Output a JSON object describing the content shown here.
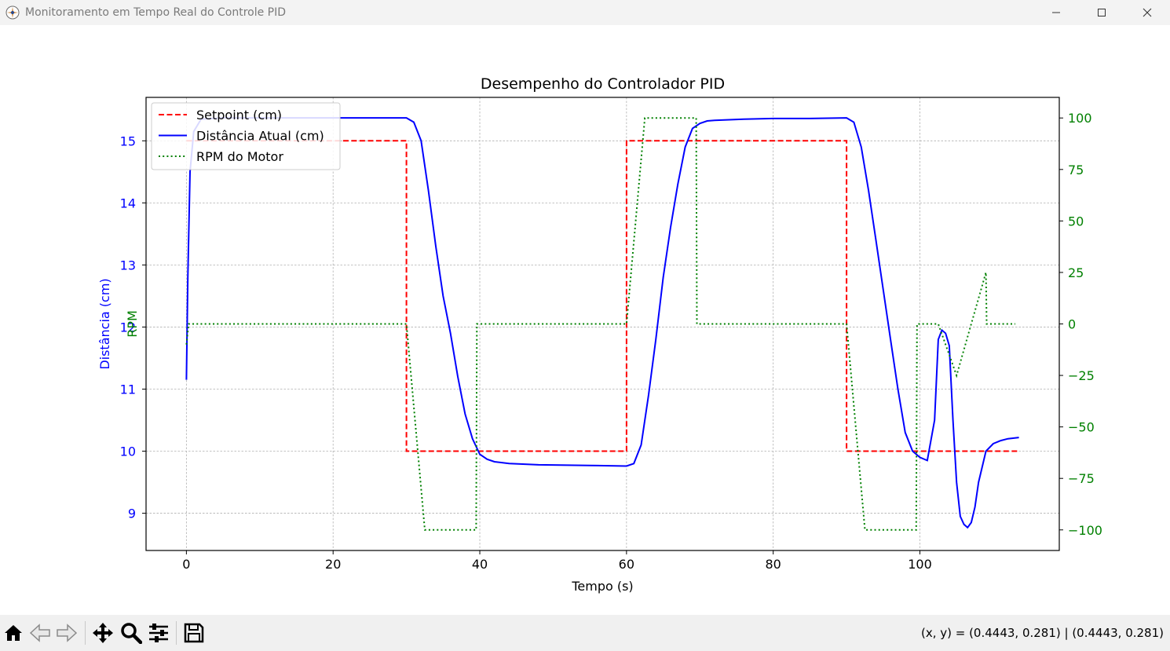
{
  "window": {
    "title": "Monitoramento em Tempo Real do Controle PID",
    "controls": [
      "minimize",
      "maximize",
      "close"
    ]
  },
  "toolbar": {
    "tools": [
      {
        "name": "home-icon",
        "label": "Home"
      },
      {
        "name": "back-arrow-icon",
        "label": "Back"
      },
      {
        "name": "forward-arrow-icon",
        "label": "Forward"
      },
      {
        "name": "pan-icon",
        "label": "Pan"
      },
      {
        "name": "zoom-icon",
        "label": "Zoom"
      },
      {
        "name": "configure-subplots-icon",
        "label": "Configure subplots"
      },
      {
        "name": "save-icon",
        "label": "Save"
      }
    ],
    "coords": "(x, y) = (0.4443, 0.281) | (0.4443, 0.281)"
  },
  "chart_data": {
    "type": "line",
    "title": "Desempenho do Controlador PID",
    "xlabel": "Tempo (s)",
    "ylabel_left": "Distância (cm)",
    "ylabel_right": "RPM",
    "xlim": [
      -5.5,
      119
    ],
    "ylim_left": [
      8.4,
      15.7
    ],
    "ylim_right": [
      -110,
      110
    ],
    "xticks": [
      0,
      20,
      40,
      60,
      80,
      100
    ],
    "yticks_left": [
      9,
      10,
      11,
      12,
      13,
      14,
      15
    ],
    "yticks_right": [
      -100,
      -75,
      -50,
      -25,
      0,
      25,
      50,
      75,
      100
    ],
    "grid": true,
    "legend_position": "upper left",
    "colors": {
      "setpoint": "#ff0000",
      "distance": "#0000ff",
      "rpm": "#008000",
      "left_axis": "#0000ff",
      "right_axis": "#008000"
    },
    "series": [
      {
        "name": "Setpoint (cm)",
        "axis": "left",
        "style": "dashed",
        "color": "#ff0000",
        "x": [
          0,
          30,
          30,
          60,
          60,
          90,
          90,
          113.5
        ],
        "y": [
          15,
          15,
          10,
          10,
          15,
          15,
          10,
          10
        ]
      },
      {
        "name": "Distância Atual (cm)",
        "axis": "left",
        "style": "solid",
        "color": "#0000ff",
        "x": [
          0,
          0.2,
          0.5,
          1,
          2,
          5,
          10,
          20,
          28,
          30,
          31,
          32,
          33,
          34,
          35,
          36,
          37,
          38,
          39,
          40,
          41,
          42,
          44,
          48,
          55,
          60,
          61,
          62,
          63,
          64,
          65,
          66,
          67,
          68,
          69,
          70,
          71,
          72,
          74,
          76,
          80,
          85,
          90,
          91,
          92,
          93,
          94,
          95,
          96,
          97,
          98,
          99,
          100,
          101,
          102,
          102.5,
          103,
          103.5,
          104,
          104.5,
          105,
          105.5,
          106,
          106.5,
          107,
          107.5,
          108,
          109,
          110,
          111,
          112,
          113.5
        ],
        "y": [
          11.15,
          12.8,
          14.5,
          15.15,
          15.35,
          15.37,
          15.37,
          15.37,
          15.37,
          15.37,
          15.3,
          15.0,
          14.2,
          13.3,
          12.5,
          11.9,
          11.2,
          10.6,
          10.2,
          9.95,
          9.87,
          9.83,
          9.8,
          9.78,
          9.77,
          9.76,
          9.8,
          10.1,
          10.9,
          11.8,
          12.8,
          13.6,
          14.3,
          14.9,
          15.2,
          15.28,
          15.32,
          15.33,
          15.34,
          15.35,
          15.36,
          15.36,
          15.37,
          15.3,
          14.9,
          14.2,
          13.4,
          12.6,
          11.8,
          11.0,
          10.3,
          10.0,
          9.9,
          9.85,
          10.5,
          11.8,
          11.95,
          11.9,
          11.7,
          10.5,
          9.5,
          8.95,
          8.82,
          8.77,
          8.85,
          9.1,
          9.5,
          10.0,
          10.12,
          10.17,
          10.2,
          10.22
        ]
      },
      {
        "name": "RPM do Motor",
        "axis": "right",
        "style": "dotted",
        "color": "#008000",
        "x": [
          0,
          0.3,
          30,
          32.5,
          39.5,
          39.6,
          60,
          62.5,
          69.5,
          69.6,
          90,
          92.5,
          99.5,
          99.6,
          102.5,
          105,
          109,
          109.1,
          113
        ],
        "y": [
          -10,
          0,
          0,
          -100,
          -100,
          0,
          0,
          100,
          100,
          0,
          0,
          -100,
          -100,
          0,
          0,
          -25,
          25,
          0,
          0
        ]
      }
    ]
  }
}
